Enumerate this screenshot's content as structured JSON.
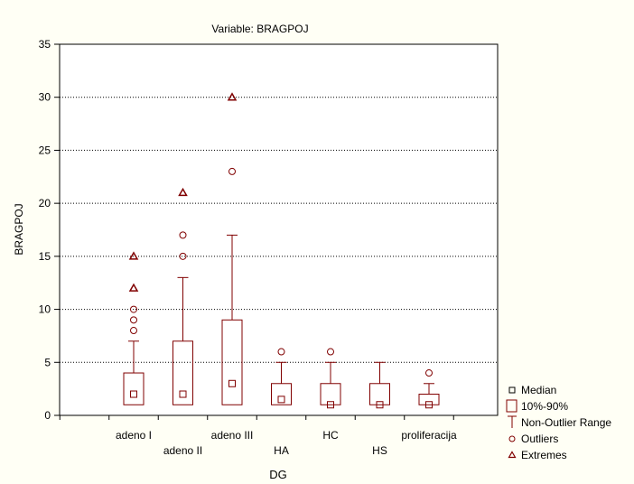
{
  "chart_data": {
    "type": "boxplot",
    "title": "Variable: BRAGPOJ",
    "xlabel": "DG",
    "ylabel": "BRAGPOJ",
    "ylim": [
      0,
      35
    ],
    "yticks": [
      0,
      5,
      10,
      15,
      20,
      25,
      30,
      35
    ],
    "grid": true,
    "color": "#800000",
    "categories": [
      "adeno I",
      "adeno II",
      "adeno III",
      "HA",
      "HC",
      "HS",
      "proliferacija"
    ],
    "boxes": [
      {
        "category": "adeno I",
        "median": 2,
        "box_low": 1,
        "box_high": 4,
        "whisker_low": 1,
        "whisker_high": 7,
        "outliers": [
          8,
          9,
          10
        ],
        "extremes": [
          12,
          15
        ]
      },
      {
        "category": "adeno II",
        "median": 2,
        "box_low": 1,
        "box_high": 7,
        "whisker_low": 1,
        "whisker_high": 13,
        "outliers": [
          15,
          17
        ],
        "extremes": [
          21
        ]
      },
      {
        "category": "adeno III",
        "median": 3,
        "box_low": 1,
        "box_high": 9,
        "whisker_low": 1,
        "whisker_high": 17,
        "outliers": [
          23
        ],
        "extremes": [
          30
        ]
      },
      {
        "category": "HA",
        "median": 1.5,
        "box_low": 1,
        "box_high": 3,
        "whisker_low": 1,
        "whisker_high": 5,
        "outliers": [
          6
        ],
        "extremes": []
      },
      {
        "category": "HC",
        "median": 1,
        "box_low": 1,
        "box_high": 3,
        "whisker_low": 1,
        "whisker_high": 5,
        "outliers": [
          6
        ],
        "extremes": []
      },
      {
        "category": "HS",
        "median": 1,
        "box_low": 1,
        "box_high": 3,
        "whisker_low": 1,
        "whisker_high": 5,
        "outliers": [],
        "extremes": []
      },
      {
        "category": "proliferacija",
        "median": 1,
        "box_low": 1,
        "box_high": 2,
        "whisker_low": 1,
        "whisker_high": 3,
        "outliers": [
          4
        ],
        "extremes": []
      }
    ],
    "legend": {
      "placement": "bottom-right",
      "items": [
        {
          "symbol": "median",
          "label": "Median"
        },
        {
          "symbol": "box",
          "label": "10%-90%"
        },
        {
          "symbol": "whisker",
          "label": "Non-Outlier Range"
        },
        {
          "symbol": "outlier",
          "label": "Outliers"
        },
        {
          "symbol": "extreme",
          "label": "Extremes"
        }
      ]
    }
  }
}
